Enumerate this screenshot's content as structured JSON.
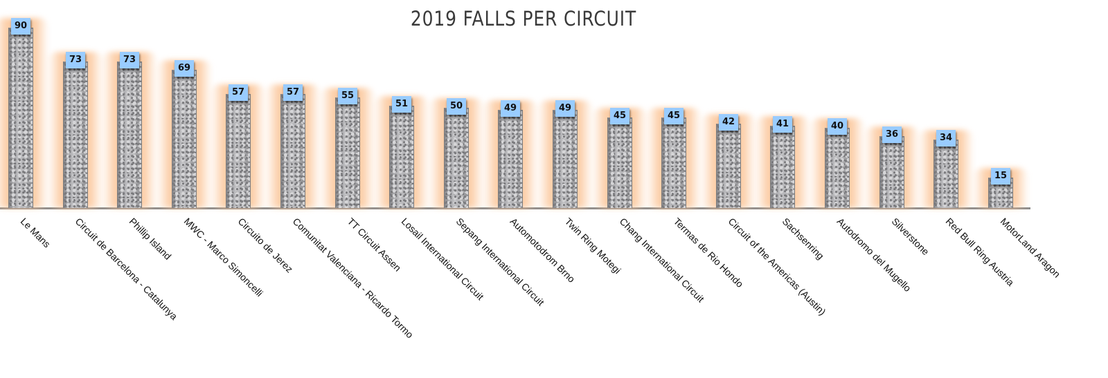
{
  "chart_data": {
    "type": "bar",
    "title": "2019 FALLS PER CIRCUIT",
    "xlabel": "",
    "ylabel": "",
    "ylim": [
      0,
      100
    ],
    "grid": false,
    "legend": null,
    "data_labels": true,
    "categories": [
      "Le Mans",
      "Circuit de Barcelona - Catalunya",
      "Phillip Island",
      "MWC - Marco Simoncelli",
      "Circuito de Jerez",
      "Comunitat Valenciana - Ricardo Tormo",
      "TT Circuit Assen",
      "Losail International Circuit",
      "Sepang International Circuit",
      "Automotodrom Brno",
      "Twin Ring Motegi",
      "Chang International Circuit",
      "Termas de Rio Hondo",
      "Circuit of the Americas (Austin)",
      "Sachsenring",
      "Autodromo del Mugello",
      "Silverstone",
      "Red Bull Ring Austria",
      "MotorLand Aragon"
    ],
    "values": [
      90,
      73,
      73,
      69,
      57,
      57,
      55,
      51,
      50,
      49,
      49,
      45,
      45,
      42,
      41,
      40,
      36,
      34,
      15
    ],
    "colors": {
      "label_box": "#99ccff",
      "glow": "#fbc496",
      "bar": "#a9a9ab",
      "axis": "#8c8c8c"
    }
  }
}
